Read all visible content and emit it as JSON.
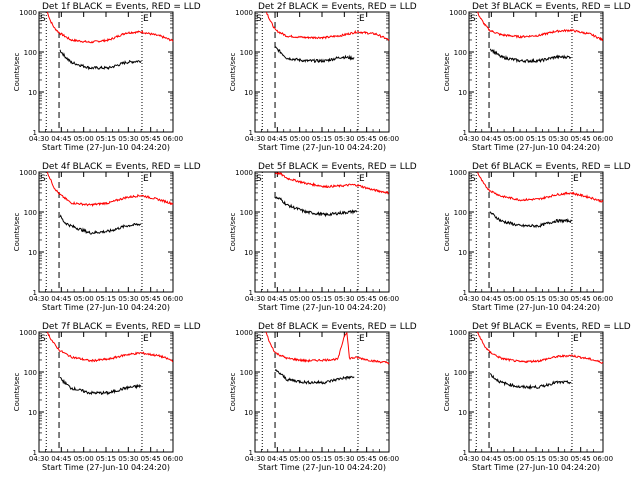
{
  "chart_data": {
    "type": "line",
    "shared": {
      "y_axis_label": "Counts/sec",
      "x_axis_label": "Start Time (27-Jun-10 04:24:20)",
      "x_tick_labels": [
        "04:30",
        "04:45",
        "05:00",
        "05:15",
        "05:30",
        "05:45",
        "06:00"
      ],
      "y_tick_labels": [
        "1",
        "10",
        "100",
        "1000"
      ],
      "x_range_minutes": [
        0,
        105
      ],
      "y_range": [
        1,
        1000
      ],
      "y_scale": "log",
      "start_marker": "S",
      "end_marker": "E",
      "start_marker_minutes": 5.7,
      "end_marker_minutes": 80.7,
      "dashed_line_minutes": 15.7,
      "series_colors": {
        "events": "#000000",
        "lld": "#ff0000"
      }
    },
    "panels": [
      {
        "title": "Det 1f BLACK = Events, RED = LLD",
        "lld": {
          "start_min": 6.5,
          "x": [
            6.5,
            9,
            12,
            16,
            25,
            40,
            55,
            68,
            80,
            95,
            105
          ],
          "y": [
            1000,
            600,
            400,
            300,
            200,
            175,
            200,
            300,
            320,
            250,
            190
          ]
        },
        "events": {
          "start_min": 16.5,
          "x": [
            16.5,
            20,
            25,
            40,
            55,
            68,
            80
          ],
          "y": [
            110,
            80,
            55,
            40,
            40,
            55,
            60
          ]
        }
      },
      {
        "title": "Det 2f BLACK = Events, RED = LLD",
        "lld": {
          "start_min": 9,
          "x": [
            9,
            12,
            16,
            25,
            40,
            55,
            68,
            80,
            95,
            105
          ],
          "y": [
            1000,
            600,
            350,
            250,
            230,
            230,
            260,
            320,
            280,
            200
          ]
        },
        "events": {
          "start_min": 15.8,
          "x": [
            15.8,
            20,
            25,
            40,
            55,
            68,
            78
          ],
          "y": [
            130,
            100,
            70,
            60,
            60,
            75,
            70
          ]
        }
      },
      {
        "title": "Det 3f BLACK = Events, RED = LLD",
        "lld": {
          "start_min": 6.5,
          "x": [
            6.5,
            9,
            12,
            16,
            25,
            40,
            55,
            68,
            80,
            95,
            105
          ],
          "y": [
            1000,
            700,
            500,
            350,
            270,
            240,
            260,
            330,
            350,
            280,
            200
          ]
        },
        "events": {
          "start_min": 16.5,
          "x": [
            16.5,
            20,
            25,
            40,
            55,
            68,
            80
          ],
          "y": [
            120,
            100,
            75,
            60,
            60,
            75,
            75
          ]
        }
      },
      {
        "title": "Det 4f BLACK = Events, RED = LLD",
        "lld": {
          "start_min": 6.5,
          "x": [
            6.5,
            9,
            12,
            16,
            25,
            40,
            55,
            68,
            80,
            95,
            105
          ],
          "y": [
            1000,
            650,
            400,
            280,
            170,
            150,
            170,
            230,
            260,
            200,
            160
          ]
        },
        "events": {
          "start_min": 16.5,
          "x": [
            16.5,
            20,
            25,
            40,
            55,
            68,
            80
          ],
          "y": [
            80,
            55,
            45,
            30,
            33,
            45,
            50
          ]
        }
      },
      {
        "title": "Det 5f BLACK = Events, RED = LLD",
        "lld": {
          "start_min": 15.8,
          "x": [
            15.8,
            20,
            25,
            40,
            55,
            68,
            75,
            80,
            92,
            105
          ],
          "y": [
            950,
            900,
            700,
            520,
            430,
            450,
            480,
            470,
            360,
            300
          ]
        },
        "events": {
          "start_min": 15.8,
          "x": [
            15.8,
            20,
            25,
            40,
            55,
            68,
            80
          ],
          "y": [
            230,
            210,
            150,
            100,
            85,
            95,
            105
          ]
        }
      },
      {
        "title": "Det 6f BLACK = Events, RED = LLD",
        "lld": {
          "start_min": 6.5,
          "x": [
            6.5,
            9,
            12,
            16,
            25,
            40,
            55,
            68,
            80,
            95,
            105
          ],
          "y": [
            1000,
            700,
            480,
            350,
            250,
            200,
            210,
            270,
            300,
            230,
            180
          ]
        },
        "events": {
          "start_min": 16.5,
          "x": [
            16.5,
            20,
            25,
            40,
            55,
            68,
            80
          ],
          "y": [
            100,
            80,
            60,
            45,
            45,
            60,
            60
          ]
        }
      },
      {
        "title": "Det 7f BLACK = Events, RED = LLD",
        "lld": {
          "start_min": 6.5,
          "x": [
            6.5,
            9,
            12,
            16,
            25,
            40,
            55,
            68,
            80,
            95,
            105
          ],
          "y": [
            1000,
            700,
            500,
            350,
            240,
            190,
            210,
            270,
            300,
            250,
            190
          ]
        },
        "events": {
          "start_min": 16.5,
          "x": [
            16.5,
            20,
            25,
            40,
            55,
            68,
            80
          ],
          "y": [
            70,
            55,
            40,
            30,
            30,
            40,
            45
          ]
        }
      },
      {
        "title": "Det 8f BLACK = Events, RED = LLD",
        "lld": {
          "start_min": 8.5,
          "x": [
            8.5,
            12,
            16,
            25,
            40,
            55,
            65,
            70,
            72,
            74,
            80,
            92,
            105
          ],
          "y": [
            1000,
            500,
            300,
            220,
            190,
            200,
            210,
            800,
            1000,
            220,
            230,
            190,
            170
          ]
        },
        "events": {
          "start_min": 15.8,
          "x": [
            15.8,
            20,
            25,
            40,
            55,
            68,
            78
          ],
          "y": [
            110,
            90,
            65,
            55,
            55,
            70,
            75
          ]
        }
      },
      {
        "title": "Det 9f BLACK = Events, RED = LLD",
        "lld": {
          "start_min": 6.5,
          "x": [
            6.5,
            9,
            12,
            16,
            25,
            40,
            55,
            68,
            80,
            95,
            105
          ],
          "y": [
            1000,
            700,
            450,
            320,
            220,
            180,
            190,
            240,
            260,
            210,
            170
          ]
        },
        "events": {
          "start_min": 16.5,
          "x": [
            16.5,
            20,
            25,
            40,
            55,
            68,
            80
          ],
          "y": [
            90,
            70,
            55,
            42,
            42,
            55,
            55
          ]
        }
      }
    ]
  }
}
